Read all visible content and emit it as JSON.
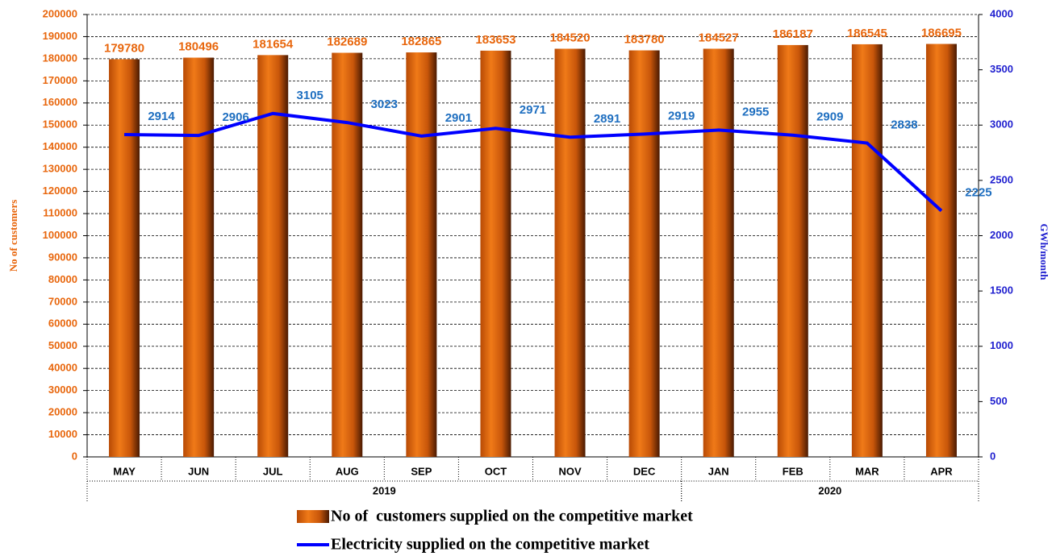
{
  "chart_data": {
    "type": "bar_line",
    "categories": [
      "MAY",
      "JUN",
      "JUL",
      "AUG",
      "SEP",
      "OCT",
      "NOV",
      "DEC",
      "JAN",
      "FEB",
      "MAR",
      "APR"
    ],
    "groups": [
      {
        "label": "2019",
        "start": 0,
        "end": 7
      },
      {
        "label": "2020",
        "start": 8,
        "end": 11
      }
    ],
    "series": [
      {
        "name": "No of  customers supplied on the competitive market",
        "type": "bar",
        "color": "#e8660c",
        "values": [
          179780,
          180496,
          181654,
          182689,
          182865,
          183653,
          184520,
          183780,
          184527,
          186187,
          186545,
          186695
        ]
      },
      {
        "name": "Electricity supplied on the competitive market",
        "type": "line",
        "axis": "y2",
        "color": "#0000ff",
        "label_color": "#1f6fc0",
        "values": [
          2914,
          2906,
          3105,
          3023,
          2901,
          2971,
          2891,
          2919,
          2955,
          2909,
          2838,
          2225
        ]
      }
    ],
    "ylabel": "No of customers",
    "y2label": "GWh/month",
    "ylim": [
      0,
      200000
    ],
    "yticks": [
      0,
      10000,
      20000,
      30000,
      40000,
      50000,
      60000,
      70000,
      80000,
      90000,
      100000,
      110000,
      120000,
      130000,
      140000,
      150000,
      160000,
      170000,
      180000,
      190000,
      200000
    ],
    "y2lim": [
      0,
      4000
    ],
    "y2ticks": [
      0,
      500,
      1000,
      1500,
      2000,
      2500,
      3000,
      3500,
      4000
    ],
    "grid": true
  }
}
